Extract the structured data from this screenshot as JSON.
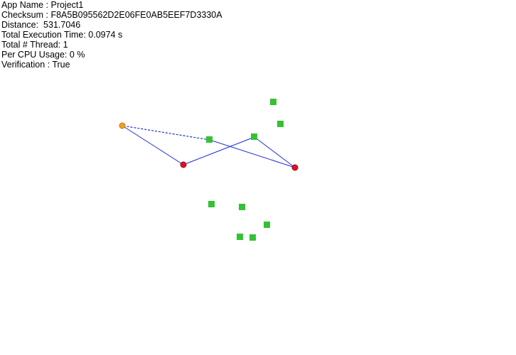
{
  "info": {
    "lines": [
      "App Name : Project1",
      "Checksum : F8A5B095562D2E06FE0AB5EEF7D3330A",
      "Distance:  531.7046",
      "Total Execution Time: 0.0974 s",
      "Total # Thread: 1",
      "Per CPU Usage: 0 %",
      "Verification : True"
    ]
  },
  "colors": {
    "route": "#1f2ed6",
    "start_node": "#f2a020",
    "start_stroke": "#c47a10",
    "visited_node": "#e0102a",
    "visited_stroke": "#a00818",
    "unvisited_node": "#33c233"
  }
}
